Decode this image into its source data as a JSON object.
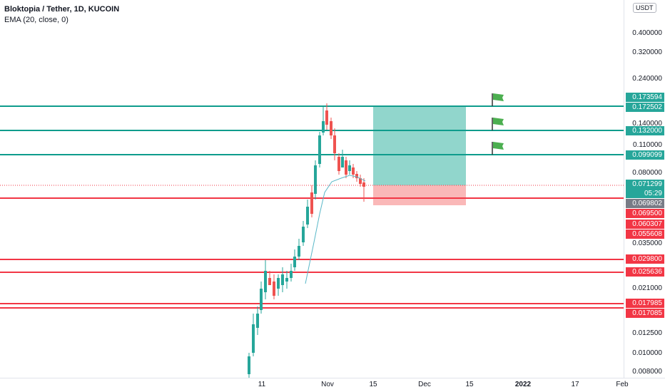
{
  "legend": {
    "title": "Bloktopia / Tether, 1D, KUCOIN",
    "indicator": "EMA (20, close, 0)"
  },
  "price_axis": {
    "currency": "USDT",
    "ticks": [
      "0.400000",
      "0.320000",
      "0.240000",
      "0.140000",
      "0.110000",
      "0.080000",
      "0.035000",
      "0.021000",
      "0.012500",
      "0.010000",
      "0.008000"
    ]
  },
  "time_axis": {
    "ticks": [
      "11",
      "Nov",
      "15",
      "Dec",
      "15",
      "2022",
      "17",
      "Feb"
    ]
  },
  "horizontal_levels": {
    "green": [
      "0.172502",
      "0.132000",
      "0.099099"
    ],
    "red": [
      "0.069500",
      "0.029800",
      "0.025636",
      "0.017985",
      "0.017085"
    ]
  },
  "price_labels": [
    {
      "text": "0.173594",
      "color": "#26a69a"
    },
    {
      "text": "0.172502",
      "color": "#26a69a"
    },
    {
      "text": "0.132000",
      "color": "#26a69a"
    },
    {
      "text": "0.099099",
      "color": "#26a69a"
    },
    {
      "text": "0.071299",
      "color": "#26a69a"
    },
    {
      "text": "05:29",
      "color": "#26a69a"
    },
    {
      "text": "0.069802",
      "color": "#787b86"
    },
    {
      "text": "0.069500",
      "color": "#f23645"
    },
    {
      "text": "0.060307",
      "color": "#f23645"
    },
    {
      "text": "0.055608",
      "color": "#f23645"
    },
    {
      "text": "0.029800",
      "color": "#f23645"
    },
    {
      "text": "0.025636",
      "color": "#f23645"
    },
    {
      "text": "0.017985",
      "color": "#f23645"
    },
    {
      "text": "0.017085",
      "color": "#f23645"
    }
  ],
  "position_tool": {
    "type": "long",
    "profit_color": "#6cc8bb",
    "loss_color": "#f9a6a6"
  },
  "flags": {
    "count": 3,
    "icon": "flag-icon",
    "color": "#4caf50"
  },
  "colors": {
    "up_candle": "#26a69a",
    "down_candle": "#ef5350",
    "ema_line": "#5ab8c8",
    "support_line": "#f23645",
    "target_line": "#0e9c8c"
  }
}
